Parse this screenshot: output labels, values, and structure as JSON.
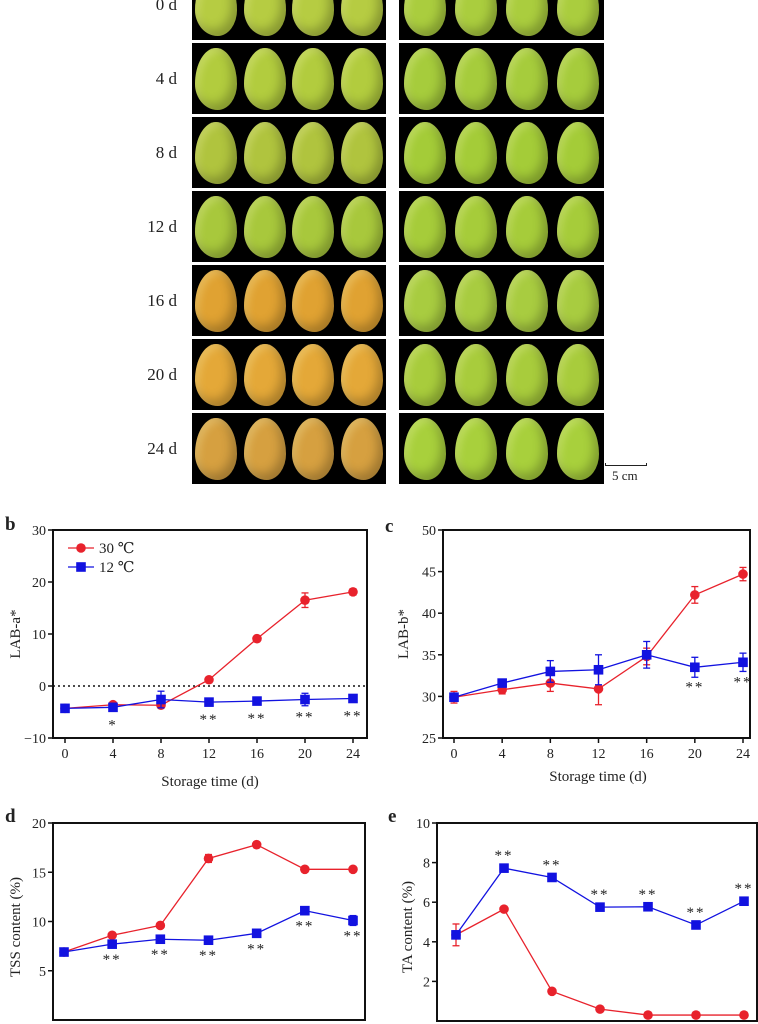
{
  "photos": {
    "rows": [
      {
        "label": "0 d",
        "left_color": "#b6cc42",
        "right_color": "#aacd3e"
      },
      {
        "label": "4 d",
        "left_color": "#b2cc3e",
        "right_color": "#a6cc3c"
      },
      {
        "label": "8 d",
        "left_color": "#b0c43e",
        "right_color": "#a4cc38"
      },
      {
        "label": "12 d",
        "left_color": "#a8c83c",
        "right_color": "#a6cc3a"
      },
      {
        "label": "16 d",
        "left_color": "#e0a232",
        "right_color": "#a8cc40"
      },
      {
        "label": "20 d",
        "left_color": "#e4a838",
        "right_color": "#a8cc3c"
      },
      {
        "label": "24 d",
        "left_color": "#d6a040",
        "right_color": "#a8d03c"
      }
    ],
    "scale_bar": "5 cm"
  },
  "colors": {
    "warm": "#e8222c",
    "cold": "#1212e0"
  },
  "chart_data": [
    {
      "panel": "b",
      "type": "line",
      "xlabel": "Storage time (d)",
      "ylabel": "LAB-a*",
      "x": [
        0,
        4,
        8,
        12,
        16,
        20,
        24
      ],
      "x_ticks": [
        "0",
        "4",
        "8",
        "12",
        "16",
        "20",
        "24"
      ],
      "ylim": [
        -10,
        30
      ],
      "y_ticks": [
        "−10",
        "0",
        "10",
        "20",
        "30"
      ],
      "y_tick_values": [
        -10,
        0,
        10,
        20,
        30
      ],
      "reference_line": 0,
      "legend": [
        "30 ℃",
        "12 ℃"
      ],
      "legend_position": "top-left",
      "sig_position": "below",
      "series": [
        {
          "name": "30 ℃",
          "marker": "circle",
          "values": [
            -4.3,
            -3.6,
            -3.7,
            1.2,
            9.1,
            16.5,
            18.1
          ],
          "errors": [
            0.3,
            0.3,
            0.5,
            0.3,
            0.4,
            1.4,
            0.6
          ]
        },
        {
          "name": "12 ℃",
          "marker": "square",
          "values": [
            -4.3,
            -4.1,
            -2.6,
            -3.1,
            -2.9,
            -2.6,
            -2.4
          ],
          "errors": [
            0.3,
            0.3,
            1.6,
            0.3,
            0.3,
            1.2,
            0.3
          ]
        }
      ],
      "significance": [
        "",
        "*",
        "",
        "**",
        "**",
        "**",
        "**"
      ]
    },
    {
      "panel": "c",
      "type": "line",
      "xlabel": "Storage time (d)",
      "ylabel": "LAB-b*",
      "x": [
        0,
        4,
        8,
        12,
        16,
        20,
        24
      ],
      "x_ticks": [
        "0",
        "4",
        "8",
        "12",
        "16",
        "20",
        "24"
      ],
      "ylim": [
        25,
        50
      ],
      "y_ticks": [
        "25",
        "30",
        "35",
        "40",
        "45",
        "50"
      ],
      "y_tick_values": [
        25,
        30,
        35,
        40,
        45,
        50
      ],
      "sig_position": "below",
      "series": [
        {
          "name": "30 ℃",
          "marker": "circle",
          "values": [
            29.9,
            30.8,
            31.6,
            30.9,
            34.8,
            42.2,
            44.7
          ],
          "errors": [
            0.7,
            0.5,
            1.0,
            1.9,
            1.0,
            1.0,
            0.8
          ]
        },
        {
          "name": "12 ℃",
          "marker": "square",
          "values": [
            29.9,
            31.6,
            33.0,
            33.2,
            35.0,
            33.5,
            34.1
          ],
          "errors": [
            0.5,
            0.3,
            1.3,
            1.8,
            1.6,
            1.2,
            1.1
          ]
        }
      ],
      "significance": [
        "",
        "",
        "",
        "",
        "",
        "**",
        "**"
      ]
    },
    {
      "panel": "d",
      "type": "line",
      "ylabel": "TSS content (%)",
      "x": [
        0,
        4,
        8,
        12,
        16,
        20,
        24
      ],
      "ylim": [
        0,
        20
      ],
      "y_ticks": [
        "5",
        "10",
        "15",
        "20"
      ],
      "y_tick_values": [
        5,
        10,
        15,
        20
      ],
      "sig_position": "below",
      "series": [
        {
          "name": "30 ℃",
          "marker": "circle",
          "values": [
            6.9,
            8.6,
            9.6,
            16.4,
            17.8,
            15.3,
            15.3
          ],
          "errors": [
            0.2,
            0.2,
            0.2,
            0.4,
            0.2,
            0.2,
            0.2
          ]
        },
        {
          "name": "12 ℃",
          "marker": "square",
          "values": [
            6.9,
            7.7,
            8.2,
            8.1,
            8.8,
            11.1,
            10.1
          ],
          "errors": [
            0.2,
            0.3,
            0.3,
            0.4,
            0.3,
            0.4,
            0.5
          ]
        }
      ],
      "significance": [
        "",
        "**",
        "**",
        "**",
        "**",
        "**",
        "**"
      ]
    },
    {
      "panel": "e",
      "type": "line",
      "ylabel": "TA content (%)",
      "x": [
        0,
        4,
        8,
        12,
        16,
        20,
        24
      ],
      "ylim": [
        0,
        10
      ],
      "y_ticks": [
        "2",
        "4",
        "6",
        "8",
        "10"
      ],
      "y_tick_values": [
        2,
        4,
        6,
        8,
        10
      ],
      "sig_position": "above",
      "series": [
        {
          "name": "30 ℃",
          "marker": "circle",
          "values": [
            4.35,
            5.65,
            1.5,
            0.6,
            0.3,
            0.3,
            0.3
          ],
          "errors": [
            0.55,
            0.1,
            0.1,
            0.1,
            0.05,
            0.05,
            0.05
          ]
        },
        {
          "name": "12 ℃",
          "marker": "square",
          "values": [
            4.35,
            7.72,
            7.25,
            5.75,
            5.77,
            4.85,
            6.05
          ],
          "errors": [
            0.2,
            0.15,
            0.15,
            0.15,
            0.15,
            0.15,
            0.15
          ]
        }
      ],
      "significance": [
        "",
        "**",
        "**",
        "**",
        "**",
        "**",
        "**"
      ]
    }
  ]
}
